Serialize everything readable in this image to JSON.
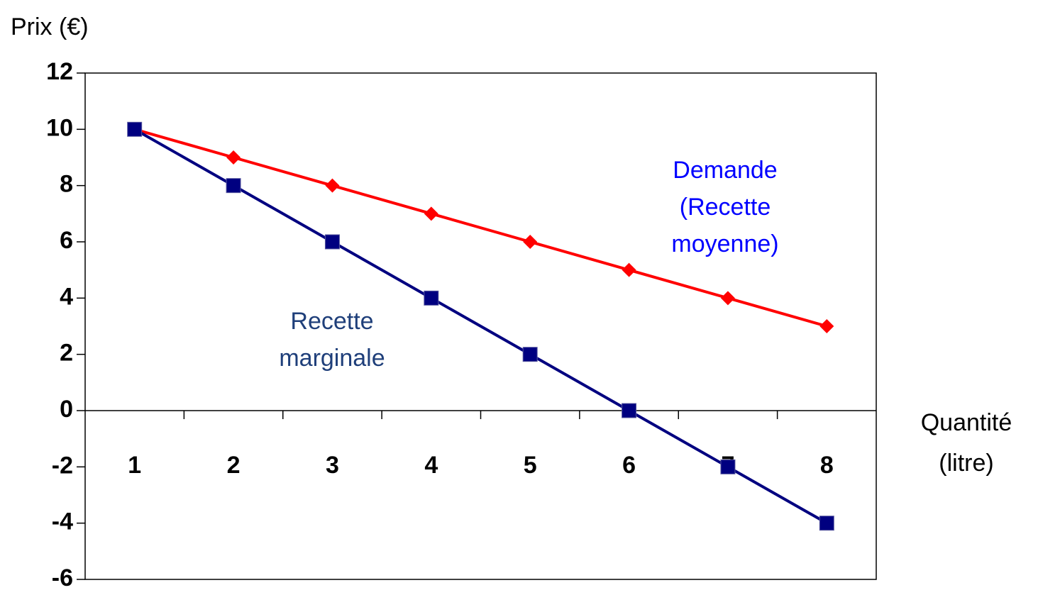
{
  "chart_data": {
    "type": "line",
    "ylabel": "Prix (€)",
    "xlabel_lines": [
      "Quantité",
      "(litre)"
    ],
    "categories": [
      "1",
      "2",
      "3",
      "4",
      "5",
      "6",
      "7",
      "8"
    ],
    "ylim": [
      -6,
      12
    ],
    "yticks": [
      -6,
      -4,
      -2,
      0,
      2,
      4,
      6,
      8,
      10,
      12
    ],
    "series": [
      {
        "label_lines": [
          "Demande",
          "(Recette",
          "moyenne)"
        ],
        "color": "#ff0000",
        "label_color": "#0000ff",
        "marker": "diamond",
        "values": [
          10,
          9,
          8,
          7,
          6,
          5,
          4,
          3
        ]
      },
      {
        "label_lines": [
          "Recette",
          "marginale"
        ],
        "color": "#000080",
        "label_color": "#1f3f7a",
        "marker": "square",
        "values": [
          10,
          8,
          6,
          4,
          2,
          0,
          -2,
          -4
        ]
      }
    ]
  }
}
